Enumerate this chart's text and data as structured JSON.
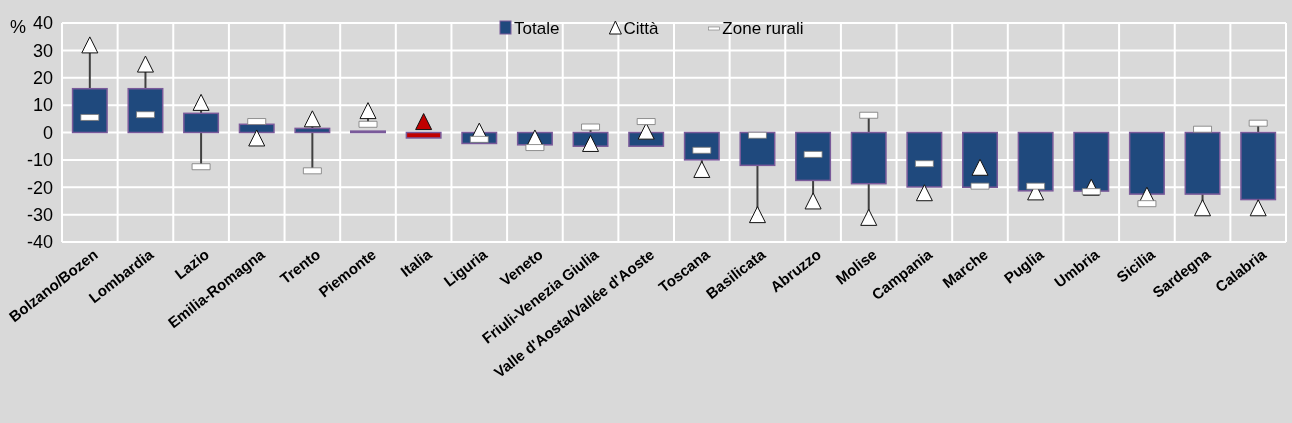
{
  "chart_data": {
    "type": "bar",
    "ylabel": "%",
    "categories": [
      "Bolzano/Bozen",
      "Lombardia",
      "Lazio",
      "Emilia-Romagna",
      "Trento",
      "Piemonte",
      "Italia",
      "Liguria",
      "Veneto",
      "Friuli-Venezia Giulia",
      "Valle d'Aosta/Vallée d'Aoste",
      "Toscana",
      "Basilicata",
      "Abruzzo",
      "Molise",
      "Campania",
      "Marche",
      "Puglia",
      "Umbria",
      "Sicilia",
      "Sardegna",
      "Calabria"
    ],
    "series": [
      {
        "name": "Totale",
        "color": "#1f497d",
        "colors": [
          "#1f497d",
          "#1f497d",
          "#1f497d",
          "#1f497d",
          "#1f497d",
          "#1f497d",
          "#c00000",
          "#1f497d",
          "#1f497d",
          "#1f497d",
          "#1f497d",
          "#1f497d",
          "#1f497d",
          "#1f497d",
          "#1f497d",
          "#1f497d",
          "#1f497d",
          "#1f497d",
          "#1f497d",
          "#1f497d",
          "#1f497d",
          "#1f497d"
        ],
        "values": [
          16,
          16,
          7,
          3,
          1.5,
          0.5,
          -2,
          -4,
          -4.5,
          -5,
          -5,
          -10,
          -12,
          -17.5,
          -18.7,
          -19.9,
          -20,
          -21.3,
          -21.4,
          -22.5,
          -22.5,
          -24.5
        ]
      },
      {
        "name": "Città",
        "type": "scatter",
        "marker": "triangle",
        "color": "#ffffff",
        "colors": [
          "#ffffff",
          "#ffffff",
          "#ffffff",
          "#ffffff",
          "#ffffff",
          "#ffffff",
          "#c00000",
          "#ffffff",
          "#ffffff",
          "#ffffff",
          "#ffffff",
          "#ffffff",
          "#ffffff",
          "#ffffff",
          "#ffffff",
          "#ffffff",
          "#ffffff",
          "#ffffff",
          "#ffffff",
          "#ffffff",
          "#ffffff",
          "#ffffff"
        ],
        "values": [
          32,
          25,
          11,
          -2,
          5,
          8,
          4,
          0.5,
          -2,
          -4,
          0.5,
          -13.5,
          -30,
          -25,
          -31,
          -22,
          -12.7,
          -21.7,
          -20,
          -22.9,
          -27.5,
          -27.5
        ]
      },
      {
        "name": "Zone rurali",
        "type": "scatter",
        "color": "#ffffff",
        "values": [
          5.5,
          6.5,
          -12.5,
          4,
          -14,
          3,
          null,
          -2.5,
          -5.5,
          2,
          4,
          -6.5,
          -1,
          -8,
          6.3,
          -11.4,
          -19.6,
          -19.6,
          -21.6,
          -26,
          1.2,
          3.4
        ]
      }
    ],
    "ylim": [
      -40,
      40
    ],
    "yticks": [
      -40,
      -30,
      -20,
      -10,
      0,
      10,
      20,
      30,
      40
    ],
    "grid": true,
    "legend": "top"
  }
}
